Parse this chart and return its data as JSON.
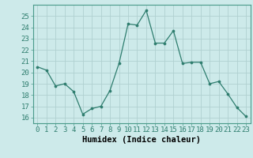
{
  "x": [
    0,
    1,
    2,
    3,
    4,
    5,
    6,
    7,
    8,
    9,
    10,
    11,
    12,
    13,
    14,
    15,
    16,
    17,
    18,
    19,
    20,
    21,
    22,
    23
  ],
  "y": [
    20.5,
    20.2,
    18.8,
    19.0,
    18.3,
    16.3,
    16.8,
    17.0,
    18.4,
    20.8,
    24.3,
    24.2,
    25.5,
    22.6,
    22.6,
    23.7,
    20.8,
    20.9,
    20.9,
    19.0,
    19.2,
    18.1,
    16.9,
    16.1
  ],
  "line_color": "#2e7d6e",
  "marker": "o",
  "marker_size": 2.2,
  "bg_color": "#cdeaea",
  "grid_color": "#b0d0d0",
  "xlabel": "Humidex (Indice chaleur)",
  "ylim": [
    15.5,
    26.0
  ],
  "xlim": [
    -0.5,
    23.5
  ],
  "yticks": [
    16,
    17,
    18,
    19,
    20,
    21,
    22,
    23,
    24,
    25
  ],
  "xticks": [
    0,
    1,
    2,
    3,
    4,
    5,
    6,
    7,
    8,
    9,
    10,
    11,
    12,
    13,
    14,
    15,
    16,
    17,
    18,
    19,
    20,
    21,
    22,
    23
  ],
  "xtick_labels": [
    "0",
    "1",
    "2",
    "3",
    "4",
    "5",
    "6",
    "7",
    "8",
    "9",
    "10",
    "11",
    "12",
    "13",
    "14",
    "15",
    "16",
    "17",
    "18",
    "19",
    "20",
    "21",
    "22",
    "23"
  ],
  "xlabel_fontsize": 7.5,
  "tick_fontsize": 6.5
}
